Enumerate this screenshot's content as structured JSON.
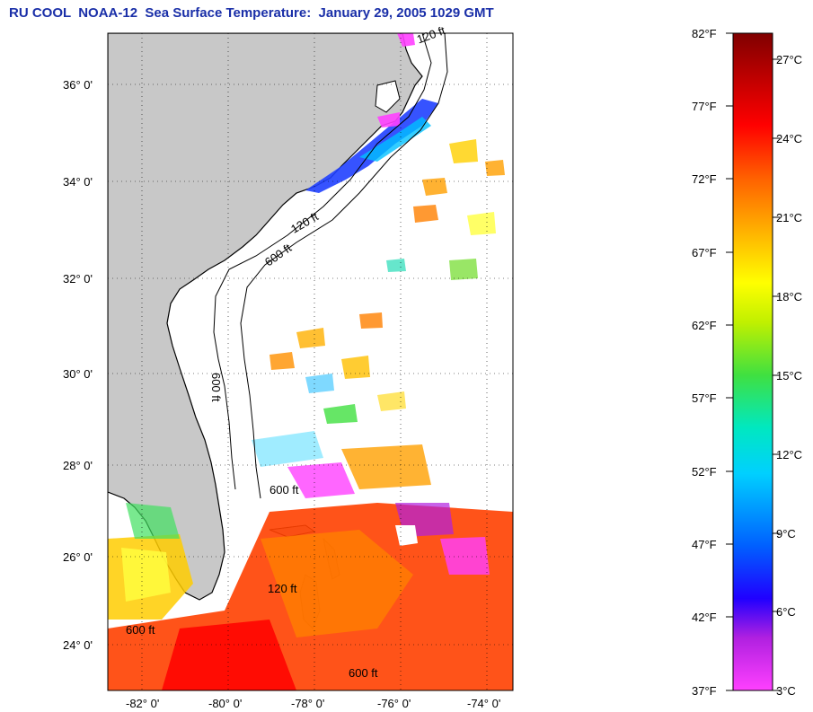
{
  "title": "RU COOL  NOAA-12  Sea Surface Temperature:  January 29, 2005 1029 GMT",
  "map": {
    "lat_labels": [
      "36° 0'",
      "34° 0'",
      "32° 0'",
      "30° 0'",
      "28° 0'",
      "26° 0'",
      "24° 0'"
    ],
    "lon_labels": [
      "-82° 0'",
      "-80° 0'",
      "-78° 0'",
      "-76° 0'",
      "-74° 0'"
    ],
    "contour_labels": [
      "120 ft",
      "600 ft",
      "120 ft",
      "600 ft",
      "600 ft",
      "600 ft",
      "120 ft",
      "600 ft"
    ],
    "colors": {
      "land": "#c8c8c8",
      "ocean_clear": "#ffffff",
      "coast": "#000000"
    }
  },
  "colorbar": {
    "fahrenheit_labels": [
      "82°F",
      "77°F",
      "72°F",
      "67°F",
      "62°F",
      "57°F",
      "52°F",
      "47°F",
      "42°F",
      "37°F"
    ],
    "celsius_labels": [
      "27°C",
      "24°C",
      "21°C",
      "18°C",
      "15°C",
      "12°C",
      "9°C",
      "6°C",
      "3°C"
    ],
    "gradient": [
      "#ff40ff",
      "#b020e0",
      "#2000ff",
      "#0060ff",
      "#00d0ff",
      "#00e8c0",
      "#40e040",
      "#c0f000",
      "#ffff00",
      "#ffb000",
      "#ff6000",
      "#ff0000",
      "#c00000",
      "#800000"
    ]
  }
}
